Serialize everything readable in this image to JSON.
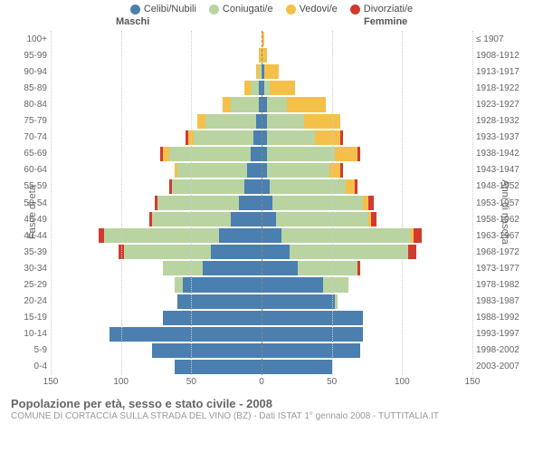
{
  "legend": [
    {
      "label": "Celibi/Nubili",
      "color": "#4a7fb0"
    },
    {
      "label": "Coniugati/e",
      "color": "#b9d4a0"
    },
    {
      "label": "Vedovi/e",
      "color": "#f5c04a"
    },
    {
      "label": "Divorziati/e",
      "color": "#d23a2e"
    }
  ],
  "sections": {
    "male": "Maschi",
    "female": "Femmine"
  },
  "axis": {
    "left_title": "Fasce di età",
    "right_title": "Anni di nascita",
    "x_ticks": [
      150,
      100,
      50,
      0,
      50,
      100,
      150
    ],
    "x_max": 150
  },
  "colors": {
    "background": "#ffffff",
    "grid": "#cccccc",
    "centerline": "#888888",
    "text": "#666666"
  },
  "pyramid": [
    {
      "age": "0-4",
      "birth": "2003-2007",
      "m": {
        "cel": 62,
        "con": 0,
        "ved": 0,
        "div": 0
      },
      "f": {
        "cel": 50,
        "con": 0,
        "ved": 0,
        "div": 0
      }
    },
    {
      "age": "5-9",
      "birth": "1998-2002",
      "m": {
        "cel": 78,
        "con": 0,
        "ved": 0,
        "div": 0
      },
      "f": {
        "cel": 70,
        "con": 0,
        "ved": 0,
        "div": 0
      }
    },
    {
      "age": "10-14",
      "birth": "1993-1997",
      "m": {
        "cel": 108,
        "con": 0,
        "ved": 0,
        "div": 0
      },
      "f": {
        "cel": 72,
        "con": 0,
        "ved": 0,
        "div": 0
      }
    },
    {
      "age": "15-19",
      "birth": "1988-1992",
      "m": {
        "cel": 70,
        "con": 0,
        "ved": 0,
        "div": 0
      },
      "f": {
        "cel": 72,
        "con": 0,
        "ved": 0,
        "div": 0
      }
    },
    {
      "age": "20-24",
      "birth": "1983-1987",
      "m": {
        "cel": 60,
        "con": 0,
        "ved": 0,
        "div": 0
      },
      "f": {
        "cel": 52,
        "con": 2,
        "ved": 0,
        "div": 0
      }
    },
    {
      "age": "25-29",
      "birth": "1978-1982",
      "m": {
        "cel": 56,
        "con": 6,
        "ved": 0,
        "div": 0
      },
      "f": {
        "cel": 44,
        "con": 18,
        "ved": 0,
        "div": 0
      }
    },
    {
      "age": "30-34",
      "birth": "1973-1977",
      "m": {
        "cel": 42,
        "con": 28,
        "ved": 0,
        "div": 0
      },
      "f": {
        "cel": 26,
        "con": 42,
        "ved": 0,
        "div": 2
      }
    },
    {
      "age": "35-39",
      "birth": "1968-1972",
      "m": {
        "cel": 36,
        "con": 62,
        "ved": 0,
        "div": 4
      },
      "f": {
        "cel": 20,
        "con": 84,
        "ved": 0,
        "div": 6
      }
    },
    {
      "age": "40-44",
      "birth": "1963-1967",
      "m": {
        "cel": 30,
        "con": 82,
        "ved": 0,
        "div": 4
      },
      "f": {
        "cel": 14,
        "con": 92,
        "ved": 2,
        "div": 6
      }
    },
    {
      "age": "45-49",
      "birth": "1958-1962",
      "m": {
        "cel": 22,
        "con": 56,
        "ved": 0,
        "div": 2
      },
      "f": {
        "cel": 10,
        "con": 66,
        "ved": 2,
        "div": 4
      }
    },
    {
      "age": "50-54",
      "birth": "1953-1957",
      "m": {
        "cel": 16,
        "con": 58,
        "ved": 0,
        "div": 2
      },
      "f": {
        "cel": 8,
        "con": 64,
        "ved": 4,
        "div": 4
      }
    },
    {
      "age": "55-59",
      "birth": "1948-1952",
      "m": {
        "cel": 12,
        "con": 52,
        "ved": 0,
        "div": 2
      },
      "f": {
        "cel": 6,
        "con": 54,
        "ved": 6,
        "div": 2
      }
    },
    {
      "age": "60-64",
      "birth": "1943-1947",
      "m": {
        "cel": 10,
        "con": 50,
        "ved": 2,
        "div": 0
      },
      "f": {
        "cel": 4,
        "con": 44,
        "ved": 8,
        "div": 2
      }
    },
    {
      "age": "65-69",
      "birth": "1938-1942",
      "m": {
        "cel": 8,
        "con": 58,
        "ved": 4,
        "div": 2
      },
      "f": {
        "cel": 4,
        "con": 48,
        "ved": 16,
        "div": 2
      }
    },
    {
      "age": "70-74",
      "birth": "1933-1937",
      "m": {
        "cel": 6,
        "con": 42,
        "ved": 4,
        "div": 2
      },
      "f": {
        "cel": 4,
        "con": 34,
        "ved": 18,
        "div": 2
      }
    },
    {
      "age": "75-79",
      "birth": "1928-1932",
      "m": {
        "cel": 4,
        "con": 36,
        "ved": 6,
        "div": 0
      },
      "f": {
        "cel": 4,
        "con": 26,
        "ved": 26,
        "div": 0
      }
    },
    {
      "age": "80-84",
      "birth": "1923-1927",
      "m": {
        "cel": 2,
        "con": 20,
        "ved": 6,
        "div": 0
      },
      "f": {
        "cel": 4,
        "con": 14,
        "ved": 28,
        "div": 0
      }
    },
    {
      "age": "85-89",
      "birth": "1918-1922",
      "m": {
        "cel": 2,
        "con": 6,
        "ved": 4,
        "div": 0
      },
      "f": {
        "cel": 2,
        "con": 4,
        "ved": 18,
        "div": 0
      }
    },
    {
      "age": "90-94",
      "birth": "1913-1917",
      "m": {
        "cel": 0,
        "con": 2,
        "ved": 2,
        "div": 0
      },
      "f": {
        "cel": 2,
        "con": 0,
        "ved": 10,
        "div": 0
      }
    },
    {
      "age": "95-99",
      "birth": "1908-1912",
      "m": {
        "cel": 0,
        "con": 0,
        "ved": 2,
        "div": 0
      },
      "f": {
        "cel": 0,
        "con": 0,
        "ved": 4,
        "div": 0
      }
    },
    {
      "age": "100+",
      "birth": "≤ 1907",
      "m": {
        "cel": 0,
        "con": 0,
        "ved": 0,
        "div": 0
      },
      "f": {
        "cel": 0,
        "con": 0,
        "ved": 2,
        "div": 0
      }
    }
  ],
  "footer": {
    "title": "Popolazione per età, sesso e stato civile - 2008",
    "subtitle": "COMUNE DI CORTACCIA SULLA STRADA DEL VINO (BZ) - Dati ISTAT 1° gennaio 2008 - TUTTITALIA.IT"
  }
}
